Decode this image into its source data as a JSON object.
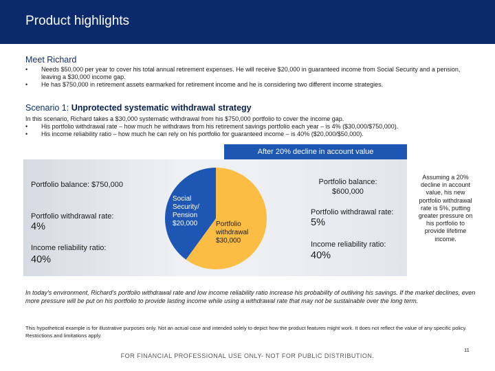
{
  "header": {
    "title": "Product highlights"
  },
  "meet": {
    "heading": "Meet Richard",
    "bullets": [
      "Needs $50,000 per year to cover his total annual retirement expenses. He will receive $20,000 in guaranteed income from Social Security and a pension, leaving a $30,000 income gap.",
      "He has $750,000 in retirement assets earmarked for retirement income and he is considering two different income strategies."
    ]
  },
  "scenario": {
    "prefix": "Scenario 1: ",
    "title": "Unprotected systematic withdrawal strategy",
    "intro": "In this scenario, Richard takes a $30,000 systematic withdrawal from his $750,000 portfolio to cover the income gap.",
    "bullets": [
      "His portfolio withdrawal rate – how much he withdraws from his retirement savings portfolio each year – is 4% ($30,000/$750,000).",
      "His income reliability ratio – how much he can rely on his portfolio for guaranteed income – is 40% ($20,000/$50,000)."
    ]
  },
  "banner": {
    "label": "After 20% decline in account value"
  },
  "left_stats": {
    "balance_label": "Portfolio balance: $750,000",
    "withdrawal_label": "Portfolio withdrawal rate:",
    "withdrawal_value": "4%",
    "reliability_label": "Income reliability ratio:",
    "reliability_value": "40%"
  },
  "right_stats": {
    "balance_label": "Portfolio balance: $600,000",
    "withdrawal_label": "Portfolio withdrawal rate:",
    "withdrawal_value": "5%",
    "reliability_label": "Income reliability ratio:",
    "reliability_value": "40%"
  },
  "pie": {
    "slices": [
      {
        "label": "Social Security/ Pension $20,000",
        "value": 20000,
        "color": "#1e56b4"
      },
      {
        "label": "Portfolio withdrawal $30,000",
        "value": 30000,
        "color": "#fbbd44"
      }
    ]
  },
  "side_note": "Assuming a 20% decline in account value, his new portfolio withdrawal rate is 5%, putting greater pressure on his portfolio to provide lifetime income.",
  "summary": "In today's environment, Richard's portfolio withdrawal rate and low income reliability ratio increase his probability of outliving his savings. If the market declines, even more pressure will be put on his portfolio to provide lasting income while using a withdrawal rate that may not be sustainable over the long term.",
  "disclaimer": "This hypothetical example is for illustrative purposes only. Not an actual case and intended solely to depict how the product features might work. It does not reflect the value of any specific policy. Restrictions and limitations apply.",
  "page_number": "11",
  "footer": "FOR FINANCIAL PROFESSIONAL USE ONLY- NOT FOR PUBLIC DISTRIBUTION."
}
